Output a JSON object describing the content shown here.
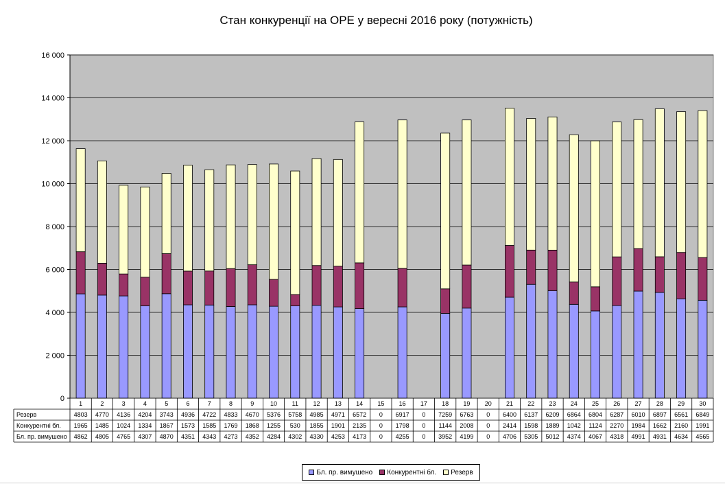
{
  "chart_data": {
    "type": "bar",
    "stacked": true,
    "title": "Стан конкуренції на ОРЕ  у вересні 2016 року (потужність)",
    "xlabel": "",
    "ylabel": "",
    "ylim": [
      0,
      16000
    ],
    "yticks": [
      "0",
      "2 000",
      "4 000",
      "6 000",
      "8 000",
      "10 000",
      "12 000",
      "14 000",
      "16 000"
    ],
    "grid": true,
    "legend_position": "bottom",
    "plot_background": "#c0c0c0",
    "categories": [
      "1",
      "2",
      "3",
      "4",
      "5",
      "6",
      "7",
      "8",
      "9",
      "10",
      "11",
      "12",
      "13",
      "14",
      "15",
      "16",
      "17",
      "18",
      "19",
      "20",
      "21",
      "22",
      "23",
      "24",
      "25",
      "26",
      "27",
      "28",
      "29",
      "30"
    ],
    "series": [
      {
        "name": "Бл. пр. вимушено",
        "color": "#9999ff",
        "values": [
          4862,
          4805,
          4765,
          4307,
          4870,
          4351,
          4343,
          4273,
          4352,
          4284,
          4302,
          4330,
          4253,
          4173,
          0,
          4255,
          0,
          3952,
          4199,
          0,
          4706,
          5305,
          5012,
          4374,
          4067,
          4318,
          4991,
          4931,
          4634,
          4565
        ]
      },
      {
        "name": "Конкурентні бл.",
        "color": "#993366",
        "values": [
          1965,
          1485,
          1024,
          1334,
          1867,
          1573,
          1585,
          1769,
          1868,
          1255,
          530,
          1855,
          1901,
          2135,
          0,
          1798,
          0,
          1144,
          2008,
          0,
          2414,
          1598,
          1889,
          1042,
          1124,
          2270,
          1984,
          1662,
          2160,
          1991
        ]
      },
      {
        "name": "Резерв",
        "color": "#ffffcc",
        "values": [
          4803,
          4770,
          4136,
          4204,
          3743,
          4936,
          4722,
          4833,
          4670,
          5376,
          5758,
          4985,
          4971,
          6572,
          0,
          6917,
          0,
          7259,
          6763,
          0,
          6400,
          6137,
          6209,
          6864,
          6804,
          6287,
          6010,
          6897,
          6561,
          6849
        ]
      }
    ],
    "table_row_order": [
      "Резерв",
      "Конкурентні бл.",
      "Бл. пр. вимушено"
    ]
  },
  "legend": {
    "items": [
      {
        "label": "Бл. пр. вимушено",
        "color": "#9999ff"
      },
      {
        "label": "Конкурентні бл.",
        "color": "#993366"
      },
      {
        "label": "Резерв",
        "color": "#ffffcc"
      }
    ]
  }
}
